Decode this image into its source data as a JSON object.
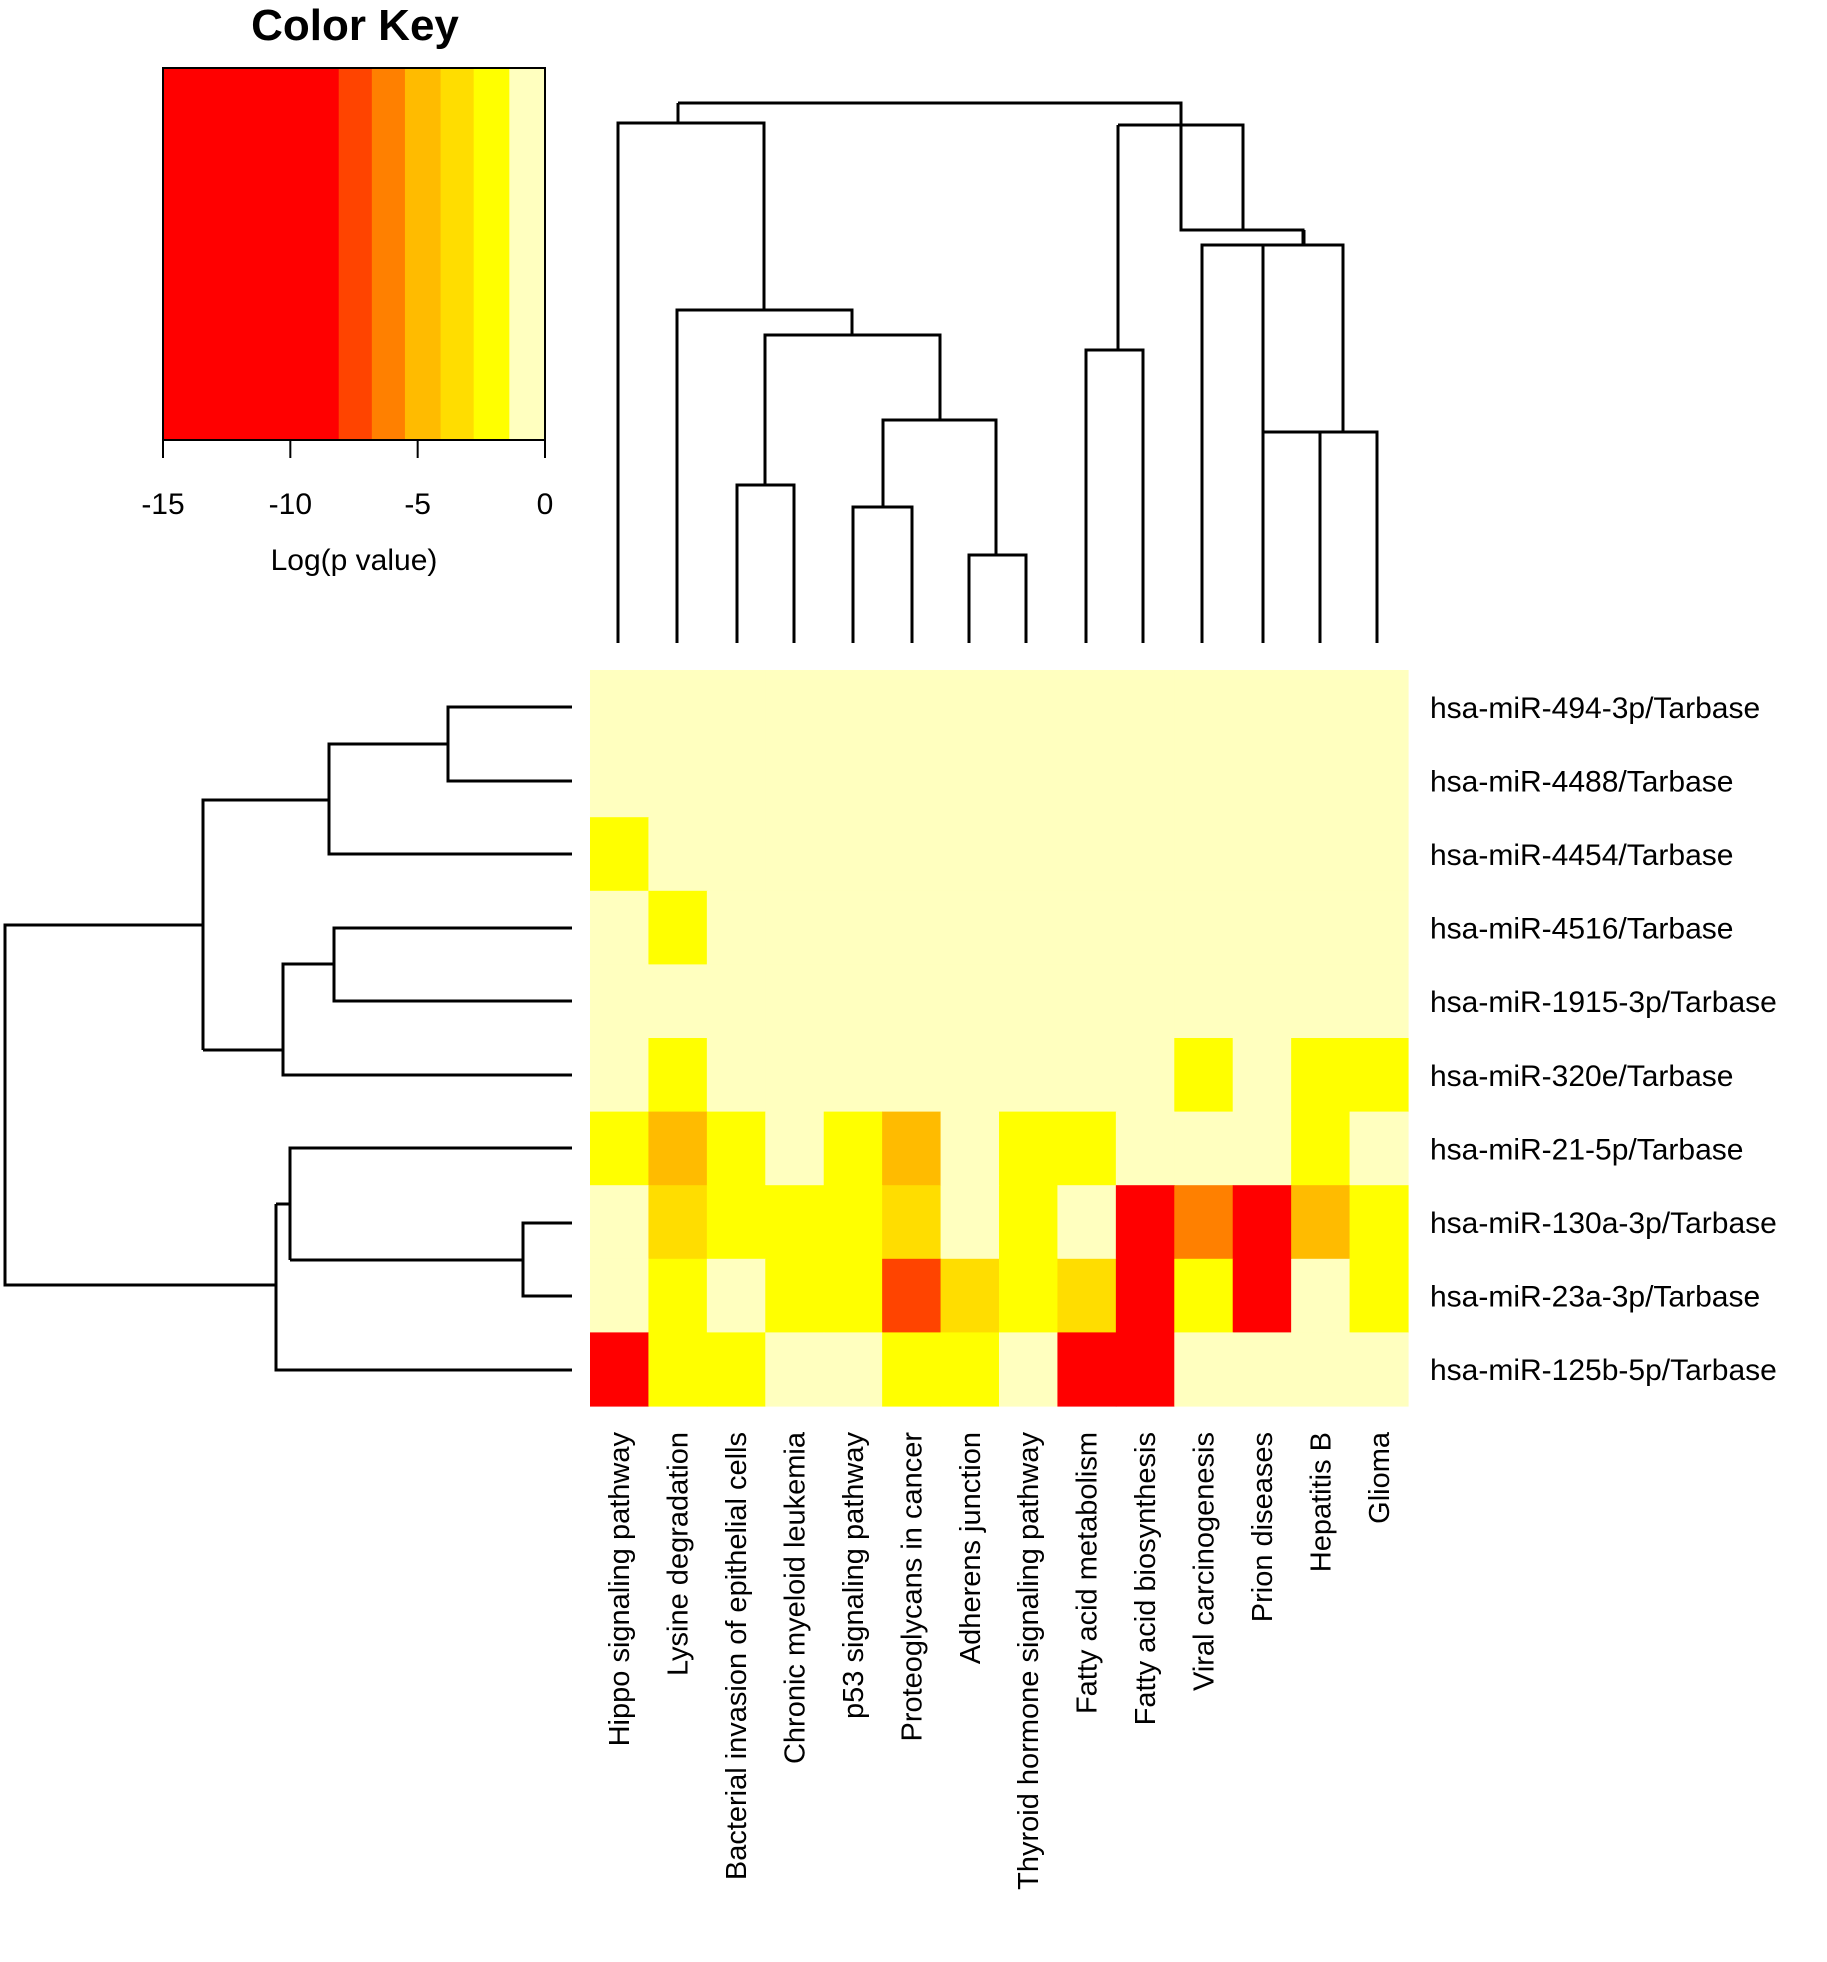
{
  "chart_data": {
    "type": "heatmap",
    "title": "",
    "color_key": {
      "title": "Color Key",
      "xlabel": "Log(p value)",
      "ticks": [
        -15,
        -10,
        -5,
        0
      ],
      "range": [
        -15,
        0
      ],
      "bins": [
        {
          "from": -15,
          "to": -8.1,
          "color": "#ff0000"
        },
        {
          "from": -8.1,
          "to": -6.8,
          "color": "#ff4400"
        },
        {
          "from": -6.8,
          "to": -5.5,
          "color": "#ff8000"
        },
        {
          "from": -5.5,
          "to": -4.1,
          "color": "#ffbb00"
        },
        {
          "from": -4.1,
          "to": -2.8,
          "color": "#ffdd00"
        },
        {
          "from": -2.8,
          "to": -1.4,
          "color": "#ffff00"
        },
        {
          "from": -1.4,
          "to": 0,
          "color": "#ffffbf"
        }
      ]
    },
    "columns": [
      "Hippo signaling pathway",
      "Lysine degradation",
      "Bacterial invasion of epithelial cells",
      "Chronic myeloid leukemia",
      "p53 signaling pathway",
      "Proteoglycans in cancer",
      "Adherens junction",
      "Thyroid hormone signaling pathway",
      "Fatty acid metabolism",
      "Fatty acid biosynthesis",
      "Viral carcinogenesis",
      "Prion diseases",
      "Hepatitis B",
      "Glioma"
    ],
    "rows": [
      "hsa-miR-494-3p/Tarbase",
      "hsa-miR-4488/Tarbase",
      "hsa-miR-4454/Tarbase",
      "hsa-miR-4516/Tarbase",
      "hsa-miR-1915-3p/Tarbase",
      "hsa-miR-320e/Tarbase",
      "hsa-miR-21-5p/Tarbase",
      "hsa-miR-130a-3p/Tarbase",
      "hsa-miR-23a-3p/Tarbase",
      "hsa-miR-125b-5p/Tarbase"
    ],
    "values": [
      [
        -0.5,
        -0.5,
        -0.5,
        -0.5,
        -0.5,
        -0.5,
        -0.5,
        -0.5,
        -0.5,
        -0.5,
        -0.5,
        -0.5,
        -0.5,
        -0.5
      ],
      [
        -0.5,
        -0.5,
        -0.5,
        -0.5,
        -0.5,
        -0.5,
        -0.5,
        -0.5,
        -0.5,
        -0.5,
        -0.5,
        -0.5,
        -0.5,
        -0.5
      ],
      [
        -2,
        -0.5,
        -0.5,
        -0.5,
        -0.5,
        -0.5,
        -0.5,
        -0.5,
        -0.5,
        -0.5,
        -0.5,
        -0.5,
        -0.5,
        -0.5
      ],
      [
        -0.5,
        -2,
        -0.5,
        -0.5,
        -0.5,
        -0.5,
        -0.5,
        -0.5,
        -0.5,
        -0.5,
        -0.5,
        -0.5,
        -0.5,
        -0.5
      ],
      [
        -0.5,
        -0.5,
        -0.5,
        -0.5,
        -0.5,
        -0.5,
        -0.5,
        -0.5,
        -0.5,
        -0.5,
        -0.5,
        -0.5,
        -0.5,
        -0.5
      ],
      [
        -0.5,
        -2,
        -0.5,
        -0.5,
        -0.5,
        -0.5,
        -0.5,
        -0.5,
        -0.5,
        -0.5,
        -2,
        -0.5,
        -2,
        -2
      ],
      [
        -2,
        -4.8,
        -2,
        -0.5,
        -2,
        -4.8,
        -0.5,
        -2,
        -2,
        -0.5,
        -0.5,
        -0.5,
        -2,
        -0.5
      ],
      [
        -0.5,
        -3.5,
        -2,
        -2,
        -2,
        -3.5,
        -0.5,
        -2,
        -0.5,
        -12,
        -6,
        -12,
        -4.8,
        -2
      ],
      [
        -0.5,
        -2,
        -0.5,
        -2,
        -2,
        -7.5,
        -3.5,
        -2,
        -3.5,
        -12,
        -2,
        -12,
        -0.5,
        -2
      ],
      [
        -9.5,
        -2,
        -2,
        -0.5,
        -0.5,
        -2,
        -2,
        -0.5,
        -12,
        -12,
        -0.5,
        -0.5,
        -0.5,
        -0.5
      ]
    ],
    "legend": "top-left",
    "grid": false
  }
}
